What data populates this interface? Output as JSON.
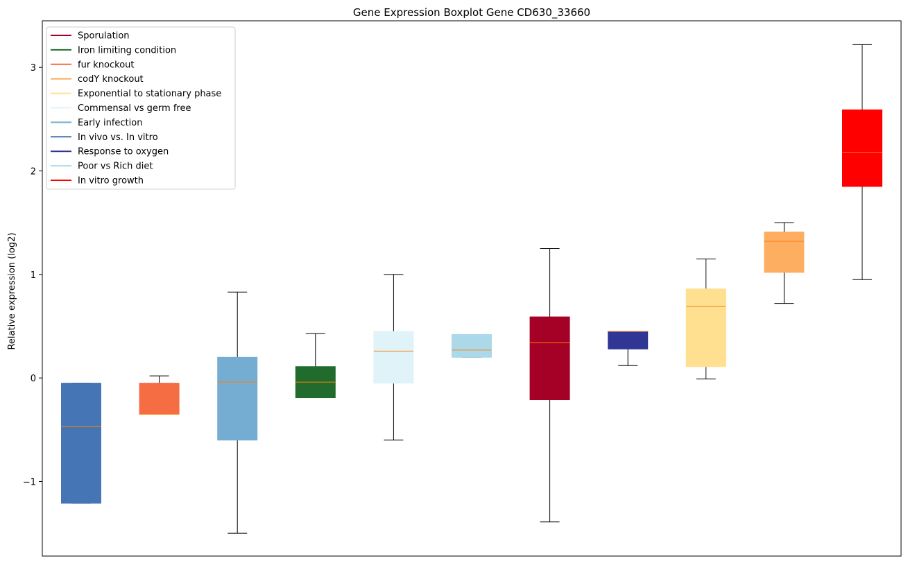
{
  "chart_data": {
    "type": "boxplot",
    "title": "Gene Expression Boxplot Gene CD630_33660",
    "xlabel": "",
    "ylabel": "Relative expression (log2)",
    "ylim": [
      -1.72,
      3.45
    ],
    "yticks": [
      -1,
      0,
      1,
      2,
      3
    ],
    "ytick_labels": [
      "−1",
      "0",
      "1",
      "2",
      "3"
    ],
    "legend_position": "top-left",
    "legend": [
      {
        "label": "Sporulation",
        "color": "#a50026"
      },
      {
        "label": "Iron limiting condition",
        "color": "#216b2c"
      },
      {
        "label": "fur knockout",
        "color": "#f46d43"
      },
      {
        "label": "codY knockout",
        "color": "#fdae61"
      },
      {
        "label": "Exponential to stationary phase",
        "color": "#fee090"
      },
      {
        "label": "Commensal vs germ free",
        "color": "#e0f3f8"
      },
      {
        "label": "Early infection",
        "color": "#74add1"
      },
      {
        "label": "In vivo vs. In vitro",
        "color": "#4575b4"
      },
      {
        "label": "Response to oxygen",
        "color": "#313695"
      },
      {
        "label": "Poor vs Rich diet",
        "color": "#abd9e9"
      },
      {
        "label": "In vitro growth",
        "color": "#ff0000"
      }
    ],
    "boxes": [
      {
        "group": "In vivo vs. In vitro",
        "color": "#4575b4",
        "whisker_low": -1.21,
        "q1": -1.21,
        "median": -0.47,
        "q3": -0.05,
        "whisker_high": -0.05
      },
      {
        "group": "fur knockout",
        "color": "#f46d43",
        "whisker_low": -0.35,
        "q1": -0.35,
        "median": -0.35,
        "q3": -0.05,
        "whisker_high": 0.02
      },
      {
        "group": "Early infection",
        "color": "#74add1",
        "whisker_low": -1.5,
        "q1": -0.6,
        "median": -0.04,
        "q3": 0.2,
        "whisker_high": 0.83
      },
      {
        "group": "Iron limiting condition",
        "color": "#216b2c",
        "whisker_low": -0.19,
        "q1": -0.19,
        "median": -0.04,
        "q3": 0.11,
        "whisker_high": 0.43
      },
      {
        "group": "Commensal vs germ free",
        "color": "#e0f3f8",
        "whisker_low": -0.6,
        "q1": -0.05,
        "median": 0.26,
        "q3": 0.45,
        "whisker_high": 1.0
      },
      {
        "group": "Poor vs Rich diet",
        "color": "#abd9e9",
        "whisker_low": 0.2,
        "q1": 0.2,
        "median": 0.27,
        "q3": 0.42,
        "whisker_high": 0.42
      },
      {
        "group": "Sporulation",
        "color": "#a50026",
        "whisker_low": -1.39,
        "q1": -0.21,
        "median": 0.34,
        "q3": 0.59,
        "whisker_high": 1.25
      },
      {
        "group": "Response to oxygen",
        "color": "#313695",
        "whisker_low": 0.12,
        "q1": 0.28,
        "median": 0.45,
        "q3": 0.45,
        "whisker_high": 0.45
      },
      {
        "group": "Exponential to stationary phase",
        "color": "#fee090",
        "whisker_low": -0.01,
        "q1": 0.11,
        "median": 0.69,
        "q3": 0.86,
        "whisker_high": 1.15
      },
      {
        "group": "codY knockout",
        "color": "#fdae61",
        "whisker_low": 0.72,
        "q1": 1.02,
        "median": 1.32,
        "q3": 1.41,
        "whisker_high": 1.5
      },
      {
        "group": "In vitro growth",
        "color": "#ff0000",
        "whisker_low": 0.95,
        "q1": 1.85,
        "median": 2.18,
        "q3": 2.59,
        "whisker_high": 3.22
      }
    ],
    "median_color": "#ff7f0e",
    "grid": false
  }
}
